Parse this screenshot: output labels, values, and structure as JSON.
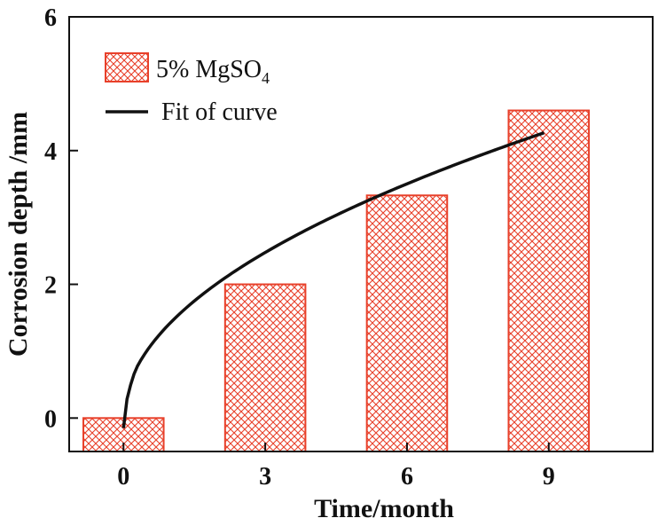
{
  "chart_data": {
    "type": "bar",
    "categories": [
      "0",
      "3",
      "6",
      "9"
    ],
    "x_values": [
      0,
      3,
      6,
      9
    ],
    "series": [
      {
        "name": "5% MgSO4",
        "legend_main": "5% MgSO",
        "legend_sub": "4",
        "values": [
          0,
          2.0,
          3.33,
          4.6
        ],
        "fill": "hatch",
        "color": "#e8402a"
      },
      {
        "name": "Fit of curve",
        "type": "line",
        "model": "a*sqrt(t)",
        "coefficient": 1.43,
        "t_start": 0,
        "t_end": 8.9,
        "color": "#111111"
      }
    ],
    "xlabel": "Time/month",
    "ylabel": "Corrosion depth /mm",
    "xlim": [
      -1.15,
      11.2
    ],
    "ylim": [
      -0.5,
      6
    ],
    "yticks": [
      0,
      2,
      4,
      6
    ],
    "xticks": [
      0,
      3,
      6,
      9
    ],
    "legend_position": "top-left",
    "grid": false
  }
}
